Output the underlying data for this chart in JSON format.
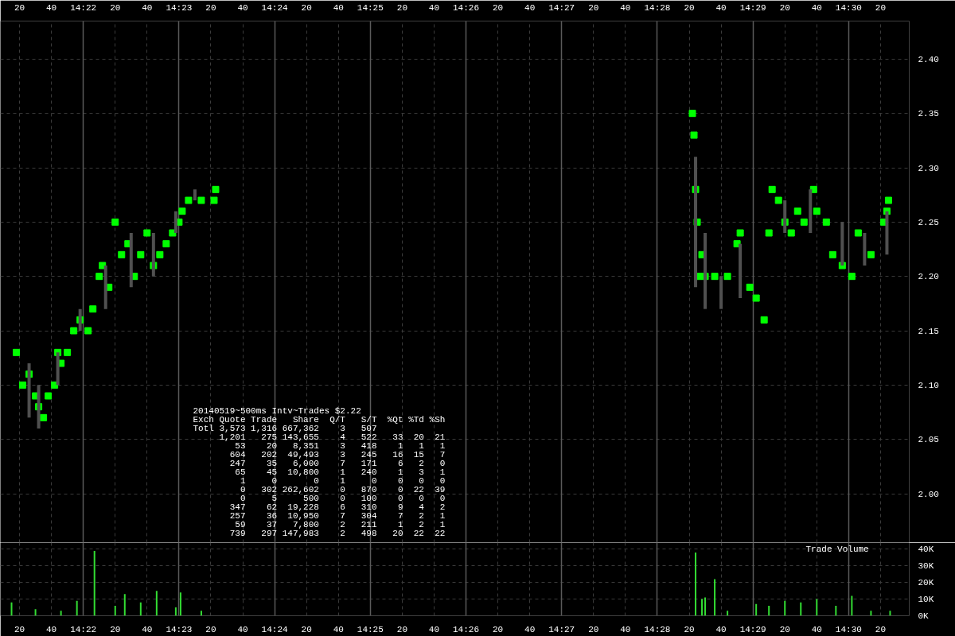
{
  "chart_data": [
    {
      "type": "scatter",
      "marker": "square",
      "grid": true,
      "xlim": [
        "2014-05-19T14:21:08",
        "2014-05-19T14:30:38"
      ],
      "ylim": [
        1.955,
        2.435
      ],
      "xticks": [
        {
          "value": "2014-05-19T14:21:20",
          "label": "20"
        },
        {
          "value": "2014-05-19T14:21:40",
          "label": "40"
        },
        {
          "value": "2014-05-19T14:22:00",
          "label": "14:22"
        },
        {
          "value": "2014-05-19T14:22:20",
          "label": "20"
        },
        {
          "value": "2014-05-19T14:22:40",
          "label": "40"
        },
        {
          "value": "2014-05-19T14:23:00",
          "label": "14:23"
        },
        {
          "value": "2014-05-19T14:23:20",
          "label": "20"
        },
        {
          "value": "2014-05-19T14:23:40",
          "label": "40"
        },
        {
          "value": "2014-05-19T14:24:00",
          "label": "14:24"
        },
        {
          "value": "2014-05-19T14:24:20",
          "label": "20"
        },
        {
          "value": "2014-05-19T14:24:40",
          "label": "40"
        },
        {
          "value": "2014-05-19T14:25:00",
          "label": "14:25"
        },
        {
          "value": "2014-05-19T14:25:20",
          "label": "20"
        },
        {
          "value": "2014-05-19T14:25:40",
          "label": "40"
        },
        {
          "value": "2014-05-19T14:26:00",
          "label": "14:26"
        },
        {
          "value": "2014-05-19T14:26:20",
          "label": "20"
        },
        {
          "value": "2014-05-19T14:26:40",
          "label": "40"
        },
        {
          "value": "2014-05-19T14:27:00",
          "label": "14:27"
        },
        {
          "value": "2014-05-19T14:27:20",
          "label": "20"
        },
        {
          "value": "2014-05-19T14:27:40",
          "label": "40"
        },
        {
          "value": "2014-05-19T14:28:00",
          "label": "14:28"
        },
        {
          "value": "2014-05-19T14:28:20",
          "label": "20"
        },
        {
          "value": "2014-05-19T14:28:40",
          "label": "40"
        },
        {
          "value": "2014-05-19T14:29:00",
          "label": "14:29"
        },
        {
          "value": "2014-05-19T14:29:20",
          "label": "20"
        },
        {
          "value": "2014-05-19T14:29:40",
          "label": "40"
        },
        {
          "value": "2014-05-19T14:30:00",
          "label": "14:30"
        },
        {
          "value": "2014-05-19T14:30:20",
          "label": "20"
        }
      ],
      "yticks": [
        {
          "value": 2.0,
          "label": "2.00"
        },
        {
          "value": 2.05,
          "label": "2.05"
        },
        {
          "value": 2.1,
          "label": "2.10"
        },
        {
          "value": 2.15,
          "label": "2.15"
        },
        {
          "value": 2.2,
          "label": "2.20"
        },
        {
          "value": 2.25,
          "label": "2.25"
        },
        {
          "value": 2.3,
          "label": "2.30"
        },
        {
          "value": 2.35,
          "label": "2.35"
        },
        {
          "value": 2.4,
          "label": "2.40"
        }
      ],
      "series": [
        {
          "type": "bar",
          "color": "#505050",
          "x": [
            "2014-05-19T14:21:26",
            "2014-05-19T14:21:32",
            "2014-05-19T14:21:44",
            "2014-05-19T14:21:58",
            "2014-05-19T14:22:14",
            "2014-05-19T14:22:30",
            "2014-05-19T14:22:44",
            "2014-05-19T14:22:58",
            "2014-05-19T14:23:10",
            "2014-05-19T14:28:24",
            "2014-05-19T14:28:30",
            "2014-05-19T14:28:40",
            "2014-05-19T14:28:52",
            "2014-05-19T14:29:20",
            "2014-05-19T14:29:36",
            "2014-05-19T14:29:56",
            "2014-05-19T14:30:10",
            "2014-05-19T14:30:24"
          ],
          "base": [
            2.07,
            2.06,
            2.1,
            2.15,
            2.17,
            2.19,
            2.2,
            2.24,
            2.27,
            2.19,
            2.17,
            2.17,
            2.18,
            2.24,
            2.24,
            2.21,
            2.21,
            2.22
          ],
          "values": [
            0.05,
            0.04,
            0.03,
            0.02,
            0.04,
            0.05,
            0.04,
            0.02,
            0.01,
            0.12,
            0.07,
            0.03,
            0.05,
            0.03,
            0.04,
            0.04,
            0.03,
            0.04
          ]
        },
        {
          "type": "scatter",
          "color": "#00ff00",
          "x": [
            "2014-05-19T14:21:18",
            "2014-05-19T14:21:22",
            "2014-05-19T14:21:26",
            "2014-05-19T14:21:30",
            "2014-05-19T14:21:32",
            "2014-05-19T14:21:35",
            "2014-05-19T14:21:38",
            "2014-05-19T14:21:42",
            "2014-05-19T14:21:44",
            "2014-05-19T14:21:46",
            "2014-05-19T14:21:50",
            "2014-05-19T14:21:54",
            "2014-05-19T14:21:58",
            "2014-05-19T14:22:03",
            "2014-05-19T14:22:06",
            "2014-05-19T14:22:10",
            "2014-05-19T14:22:12",
            "2014-05-19T14:22:16",
            "2014-05-19T14:22:20",
            "2014-05-19T14:22:24",
            "2014-05-19T14:22:28",
            "2014-05-19T14:22:32",
            "2014-05-19T14:22:36",
            "2014-05-19T14:22:40",
            "2014-05-19T14:22:44",
            "2014-05-19T14:22:48",
            "2014-05-19T14:22:52",
            "2014-05-19T14:22:56",
            "2014-05-19T14:23:00",
            "2014-05-19T14:23:02",
            "2014-05-19T14:23:06",
            "2014-05-19T14:23:14",
            "2014-05-19T14:23:22",
            "2014-05-19T14:23:23",
            "2014-05-19T14:28:22",
            "2014-05-19T14:28:23",
            "2014-05-19T14:28:24",
            "2014-05-19T14:28:25",
            "2014-05-19T14:28:26",
            "2014-05-19T14:28:28",
            "2014-05-19T14:28:30",
            "2014-05-19T14:28:36",
            "2014-05-19T14:28:44",
            "2014-05-19T14:28:50",
            "2014-05-19T14:28:52",
            "2014-05-19T14:28:58",
            "2014-05-19T14:29:02",
            "2014-05-19T14:29:07",
            "2014-05-19T14:29:10",
            "2014-05-19T14:29:12",
            "2014-05-19T14:29:16",
            "2014-05-19T14:29:20",
            "2014-05-19T14:29:24",
            "2014-05-19T14:29:28",
            "2014-05-19T14:29:32",
            "2014-05-19T14:29:38",
            "2014-05-19T14:29:40",
            "2014-05-19T14:29:46",
            "2014-05-19T14:29:50",
            "2014-05-19T14:29:56",
            "2014-05-19T14:30:02",
            "2014-05-19T14:30:06",
            "2014-05-19T14:30:14",
            "2014-05-19T14:30:22",
            "2014-05-19T14:30:24",
            "2014-05-19T14:30:25"
          ],
          "values": [
            2.13,
            2.1,
            2.11,
            2.09,
            2.08,
            2.07,
            2.09,
            2.1,
            2.13,
            2.12,
            2.13,
            2.15,
            2.16,
            2.15,
            2.17,
            2.2,
            2.21,
            2.19,
            2.25,
            2.22,
            2.23,
            2.2,
            2.22,
            2.24,
            2.21,
            2.22,
            2.23,
            2.24,
            2.25,
            2.26,
            2.27,
            2.27,
            2.27,
            2.28,
            2.35,
            2.33,
            2.28,
            2.25,
            2.2,
            2.22,
            2.2,
            2.2,
            2.2,
            2.23,
            2.24,
            2.19,
            2.18,
            2.16,
            2.24,
            2.28,
            2.27,
            2.25,
            2.24,
            2.26,
            2.25,
            2.28,
            2.26,
            2.25,
            2.22,
            2.21,
            2.2,
            2.24,
            2.22,
            2.25,
            2.26,
            2.27
          ]
        }
      ],
      "annotations": [
        "20140519~500ms Intv~Trades $2.22",
        "Exch Quote Trade   Share  Q/T   S/T  %Qt %Td %Sh",
        "Totl 3,573 1,316 667,362    3   507",
        "     1,201   275 143,655    4   522   33  20  21",
        "        53    20   8,351    3   418    1   1   1",
        "       604   202  49,493    3   245   16  15   7",
        "       247    35   6,000    7   171    6   2   0",
        "        65    45  10,800    1   240    1   3   1",
        "         1     0       0    1     0    0   0   0",
        "         0   302 262,602    0   870    0  22  39",
        "         0     5     500    0   100    0   0   0",
        "       347    62  19,228    6   310    9   4   2",
        "       257    36  10,950    7   304    7   2   1",
        "        59    37   7,800    2   211    1   2   1",
        "       739   297 147,983    2   498   20  22  22"
      ]
    },
    {
      "type": "bar",
      "title": "Trade Volume",
      "grid": true,
      "xlim": [
        "2014-05-19T14:21:08",
        "2014-05-19T14:30:38"
      ],
      "ylim": [
        0,
        44000
      ],
      "xticks": [
        {
          "value": "2014-05-19T14:21:20",
          "label": "20"
        },
        {
          "value": "2014-05-19T14:21:40",
          "label": "40"
        },
        {
          "value": "2014-05-19T14:22:00",
          "label": "14:22"
        },
        {
          "value": "2014-05-19T14:22:20",
          "label": "20"
        },
        {
          "value": "2014-05-19T14:22:40",
          "label": "40"
        },
        {
          "value": "2014-05-19T14:23:00",
          "label": "14:23"
        },
        {
          "value": "2014-05-19T14:23:20",
          "label": "20"
        },
        {
          "value": "2014-05-19T14:23:40",
          "label": "40"
        },
        {
          "value": "2014-05-19T14:24:00",
          "label": "14:24"
        },
        {
          "value": "2014-05-19T14:24:20",
          "label": "20"
        },
        {
          "value": "2014-05-19T14:24:40",
          "label": "40"
        },
        {
          "value": "2014-05-19T14:25:00",
          "label": "14:25"
        },
        {
          "value": "2014-05-19T14:25:20",
          "label": "20"
        },
        {
          "value": "2014-05-19T14:25:40",
          "label": "40"
        },
        {
          "value": "2014-05-19T14:26:00",
          "label": "14:26"
        },
        {
          "value": "2014-05-19T14:26:20",
          "label": "20"
        },
        {
          "value": "2014-05-19T14:26:40",
          "label": "40"
        },
        {
          "value": "2014-05-19T14:27:00",
          "label": "14:27"
        },
        {
          "value": "2014-05-19T14:27:20",
          "label": "20"
        },
        {
          "value": "2014-05-19T14:27:40",
          "label": "40"
        },
        {
          "value": "2014-05-19T14:28:00",
          "label": "14:28"
        },
        {
          "value": "2014-05-19T14:28:20",
          "label": "20"
        },
        {
          "value": "2014-05-19T14:28:40",
          "label": "40"
        },
        {
          "value": "2014-05-19T14:29:00",
          "label": "14:29"
        },
        {
          "value": "2014-05-19T14:29:20",
          "label": "20"
        },
        {
          "value": "2014-05-19T14:29:40",
          "label": "40"
        },
        {
          "value": "2014-05-19T14:30:00",
          "label": "14:30"
        },
        {
          "value": "2014-05-19T14:30:20",
          "label": "20"
        }
      ],
      "yticks": [
        {
          "value": 0,
          "label": "0K"
        },
        {
          "value": 10000,
          "label": "10K"
        },
        {
          "value": 20000,
          "label": "20K"
        },
        {
          "value": 30000,
          "label": "30K"
        },
        {
          "value": 40000,
          "label": "40K"
        }
      ],
      "series": [
        {
          "color": "#33dd33",
          "x": [
            "2014-05-19T14:21:15",
            "2014-05-19T14:21:30",
            "2014-05-19T14:21:46",
            "2014-05-19T14:21:56",
            "2014-05-19T14:22:07",
            "2014-05-19T14:22:20",
            "2014-05-19T14:22:26",
            "2014-05-19T14:22:36",
            "2014-05-19T14:22:46",
            "2014-05-19T14:22:58",
            "2014-05-19T14:23:01",
            "2014-05-19T14:23:14",
            "2014-05-19T14:28:24",
            "2014-05-19T14:28:28",
            "2014-05-19T14:28:30",
            "2014-05-19T14:28:36",
            "2014-05-19T14:28:44",
            "2014-05-19T14:29:02",
            "2014-05-19T14:29:10",
            "2014-05-19T14:29:20",
            "2014-05-19T14:29:30",
            "2014-05-19T14:29:40",
            "2014-05-19T14:29:52",
            "2014-05-19T14:30:02",
            "2014-05-19T14:30:14",
            "2014-05-19T14:30:26"
          ],
          "values": [
            8000,
            4000,
            3000,
            9000,
            39000,
            6000,
            13000,
            8000,
            15000,
            5000,
            14000,
            3000,
            38000,
            10000,
            11000,
            22000,
            3000,
            7000,
            6000,
            9000,
            8000,
            10000,
            6000,
            12000,
            3000,
            3000
          ]
        }
      ]
    }
  ]
}
